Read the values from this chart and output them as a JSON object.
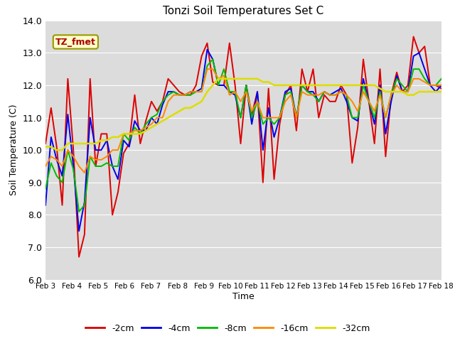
{
  "title": "Tonzi Soil Temperatures Set C",
  "xlabel": "Time",
  "ylabel": "Soil Temperature (C)",
  "ylim": [
    6.0,
    14.0
  ],
  "yticks": [
    6.0,
    7.0,
    8.0,
    9.0,
    10.0,
    11.0,
    12.0,
    13.0,
    14.0
  ],
  "plot_bg": "#dcdcdc",
  "fig_bg": "#ffffff",
  "series_order": [
    "-2cm",
    "-4cm",
    "-8cm",
    "-16cm",
    "-32cm"
  ],
  "series": {
    "-2cm": {
      "color": "#dd0000",
      "lw": 1.4
    },
    "-4cm": {
      "color": "#0000ee",
      "lw": 1.4
    },
    "-8cm": {
      "color": "#00bb00",
      "lw": 1.4
    },
    "-16cm": {
      "color": "#ff8800",
      "lw": 1.4
    },
    "-32cm": {
      "color": "#dddd00",
      "lw": 1.8
    }
  },
  "legend_label": "TZ_fmet",
  "x_tick_labels": [
    "Feb 3",
    "Feb 4",
    "Feb 5",
    "Feb 6",
    "Feb 7",
    "Feb 8",
    "Feb 9",
    "Feb 10",
    "Feb 11",
    "Feb 12",
    "Feb 13",
    "Feb 14",
    "Feb 15",
    "Feb 16",
    "Feb 17",
    "Feb 18"
  ],
  "data": {
    "-2cm": [
      10.2,
      11.3,
      10.1,
      8.3,
      12.2,
      10.0,
      6.7,
      7.4,
      12.2,
      9.5,
      10.5,
      10.5,
      8.0,
      8.7,
      9.9,
      10.2,
      11.7,
      10.2,
      10.9,
      11.5,
      11.2,
      11.5,
      12.2,
      12.0,
      11.8,
      11.7,
      11.7,
      12.0,
      12.9,
      13.3,
      12.1,
      12.0,
      12.0,
      13.3,
      12.0,
      10.2,
      12.0,
      11.1,
      11.8,
      9.0,
      11.9,
      9.1,
      10.8,
      11.7,
      12.0,
      10.6,
      12.5,
      11.8,
      12.5,
      11.0,
      11.7,
      11.5,
      11.5,
      12.0,
      11.7,
      9.6,
      10.7,
      12.8,
      11.5,
      10.2,
      12.5,
      9.8,
      11.7,
      12.4,
      11.8,
      12.0,
      13.5,
      13.0,
      13.2,
      12.0,
      12.0,
      11.9
    ],
    "-4cm": [
      8.3,
      10.4,
      9.7,
      9.2,
      11.1,
      9.5,
      7.5,
      8.4,
      11.0,
      10.0,
      10.0,
      10.3,
      9.5,
      9.1,
      10.3,
      10.1,
      10.9,
      10.6,
      10.6,
      11.0,
      10.8,
      11.4,
      11.8,
      11.8,
      11.7,
      11.7,
      11.8,
      11.8,
      11.9,
      13.1,
      12.8,
      12.0,
      12.0,
      11.8,
      11.7,
      11.0,
      12.0,
      10.8,
      11.8,
      10.0,
      11.3,
      10.4,
      11.0,
      11.8,
      11.9,
      11.0,
      12.0,
      11.8,
      11.8,
      11.5,
      11.8,
      11.7,
      11.8,
      11.9,
      11.5,
      11.0,
      10.9,
      12.2,
      11.5,
      10.8,
      12.0,
      10.5,
      11.5,
      12.3,
      11.8,
      11.8,
      12.9,
      13.0,
      12.5,
      12.0,
      11.8,
      12.0
    ],
    "-8cm": [
      8.8,
      9.6,
      9.2,
      9.0,
      10.0,
      9.4,
      8.1,
      8.3,
      9.8,
      9.5,
      9.5,
      9.6,
      9.5,
      9.5,
      10.5,
      10.3,
      10.7,
      10.5,
      10.8,
      11.0,
      11.1,
      11.5,
      11.7,
      11.8,
      11.7,
      11.7,
      11.7,
      11.8,
      11.8,
      12.6,
      12.8,
      12.0,
      12.5,
      11.8,
      11.8,
      11.0,
      12.0,
      11.0,
      11.5,
      10.8,
      11.0,
      10.8,
      11.0,
      11.7,
      11.8,
      11.0,
      12.0,
      11.8,
      11.7,
      11.5,
      11.8,
      11.7,
      11.7,
      11.8,
      11.7,
      11.0,
      11.0,
      12.0,
      11.5,
      11.0,
      11.8,
      11.0,
      11.7,
      12.2,
      12.0,
      11.8,
      12.5,
      12.5,
      12.2,
      12.0,
      12.0,
      12.2
    ],
    "-16cm": [
      9.5,
      9.8,
      9.7,
      9.5,
      10.0,
      9.8,
      9.5,
      9.3,
      9.8,
      9.7,
      9.7,
      9.8,
      10.0,
      10.0,
      10.5,
      10.5,
      10.6,
      10.6,
      10.7,
      10.8,
      11.0,
      11.0,
      11.5,
      11.7,
      11.7,
      11.7,
      11.8,
      11.8,
      11.8,
      12.5,
      12.5,
      12.2,
      12.3,
      11.7,
      11.8,
      11.5,
      11.8,
      11.2,
      11.5,
      11.0,
      11.0,
      11.0,
      11.0,
      11.5,
      11.7,
      11.0,
      11.8,
      11.7,
      11.7,
      11.7,
      11.8,
      11.7,
      11.7,
      11.8,
      11.7,
      11.5,
      11.2,
      11.8,
      11.5,
      11.2,
      11.7,
      11.0,
      11.7,
      12.0,
      11.8,
      11.8,
      12.2,
      12.2,
      12.1,
      12.0,
      12.0,
      12.0
    ],
    "-32cm": [
      10.1,
      10.1,
      10.0,
      10.0,
      10.2,
      10.2,
      10.2,
      10.2,
      10.2,
      10.2,
      10.3,
      10.3,
      10.4,
      10.4,
      10.5,
      10.5,
      10.5,
      10.5,
      10.6,
      10.7,
      10.8,
      10.9,
      11.0,
      11.1,
      11.2,
      11.3,
      11.3,
      11.4,
      11.5,
      11.8,
      12.0,
      12.2,
      12.2,
      12.2,
      12.2,
      12.2,
      12.2,
      12.2,
      12.2,
      12.1,
      12.1,
      12.0,
      12.0,
      12.0,
      12.0,
      12.0,
      12.0,
      12.0,
      12.0,
      12.0,
      12.0,
      12.0,
      12.0,
      12.0,
      12.0,
      12.0,
      12.0,
      12.0,
      12.0,
      12.0,
      11.9,
      11.8,
      11.8,
      11.8,
      11.8,
      11.7,
      11.7,
      11.8,
      11.8,
      11.8,
      11.8,
      11.8
    ]
  }
}
